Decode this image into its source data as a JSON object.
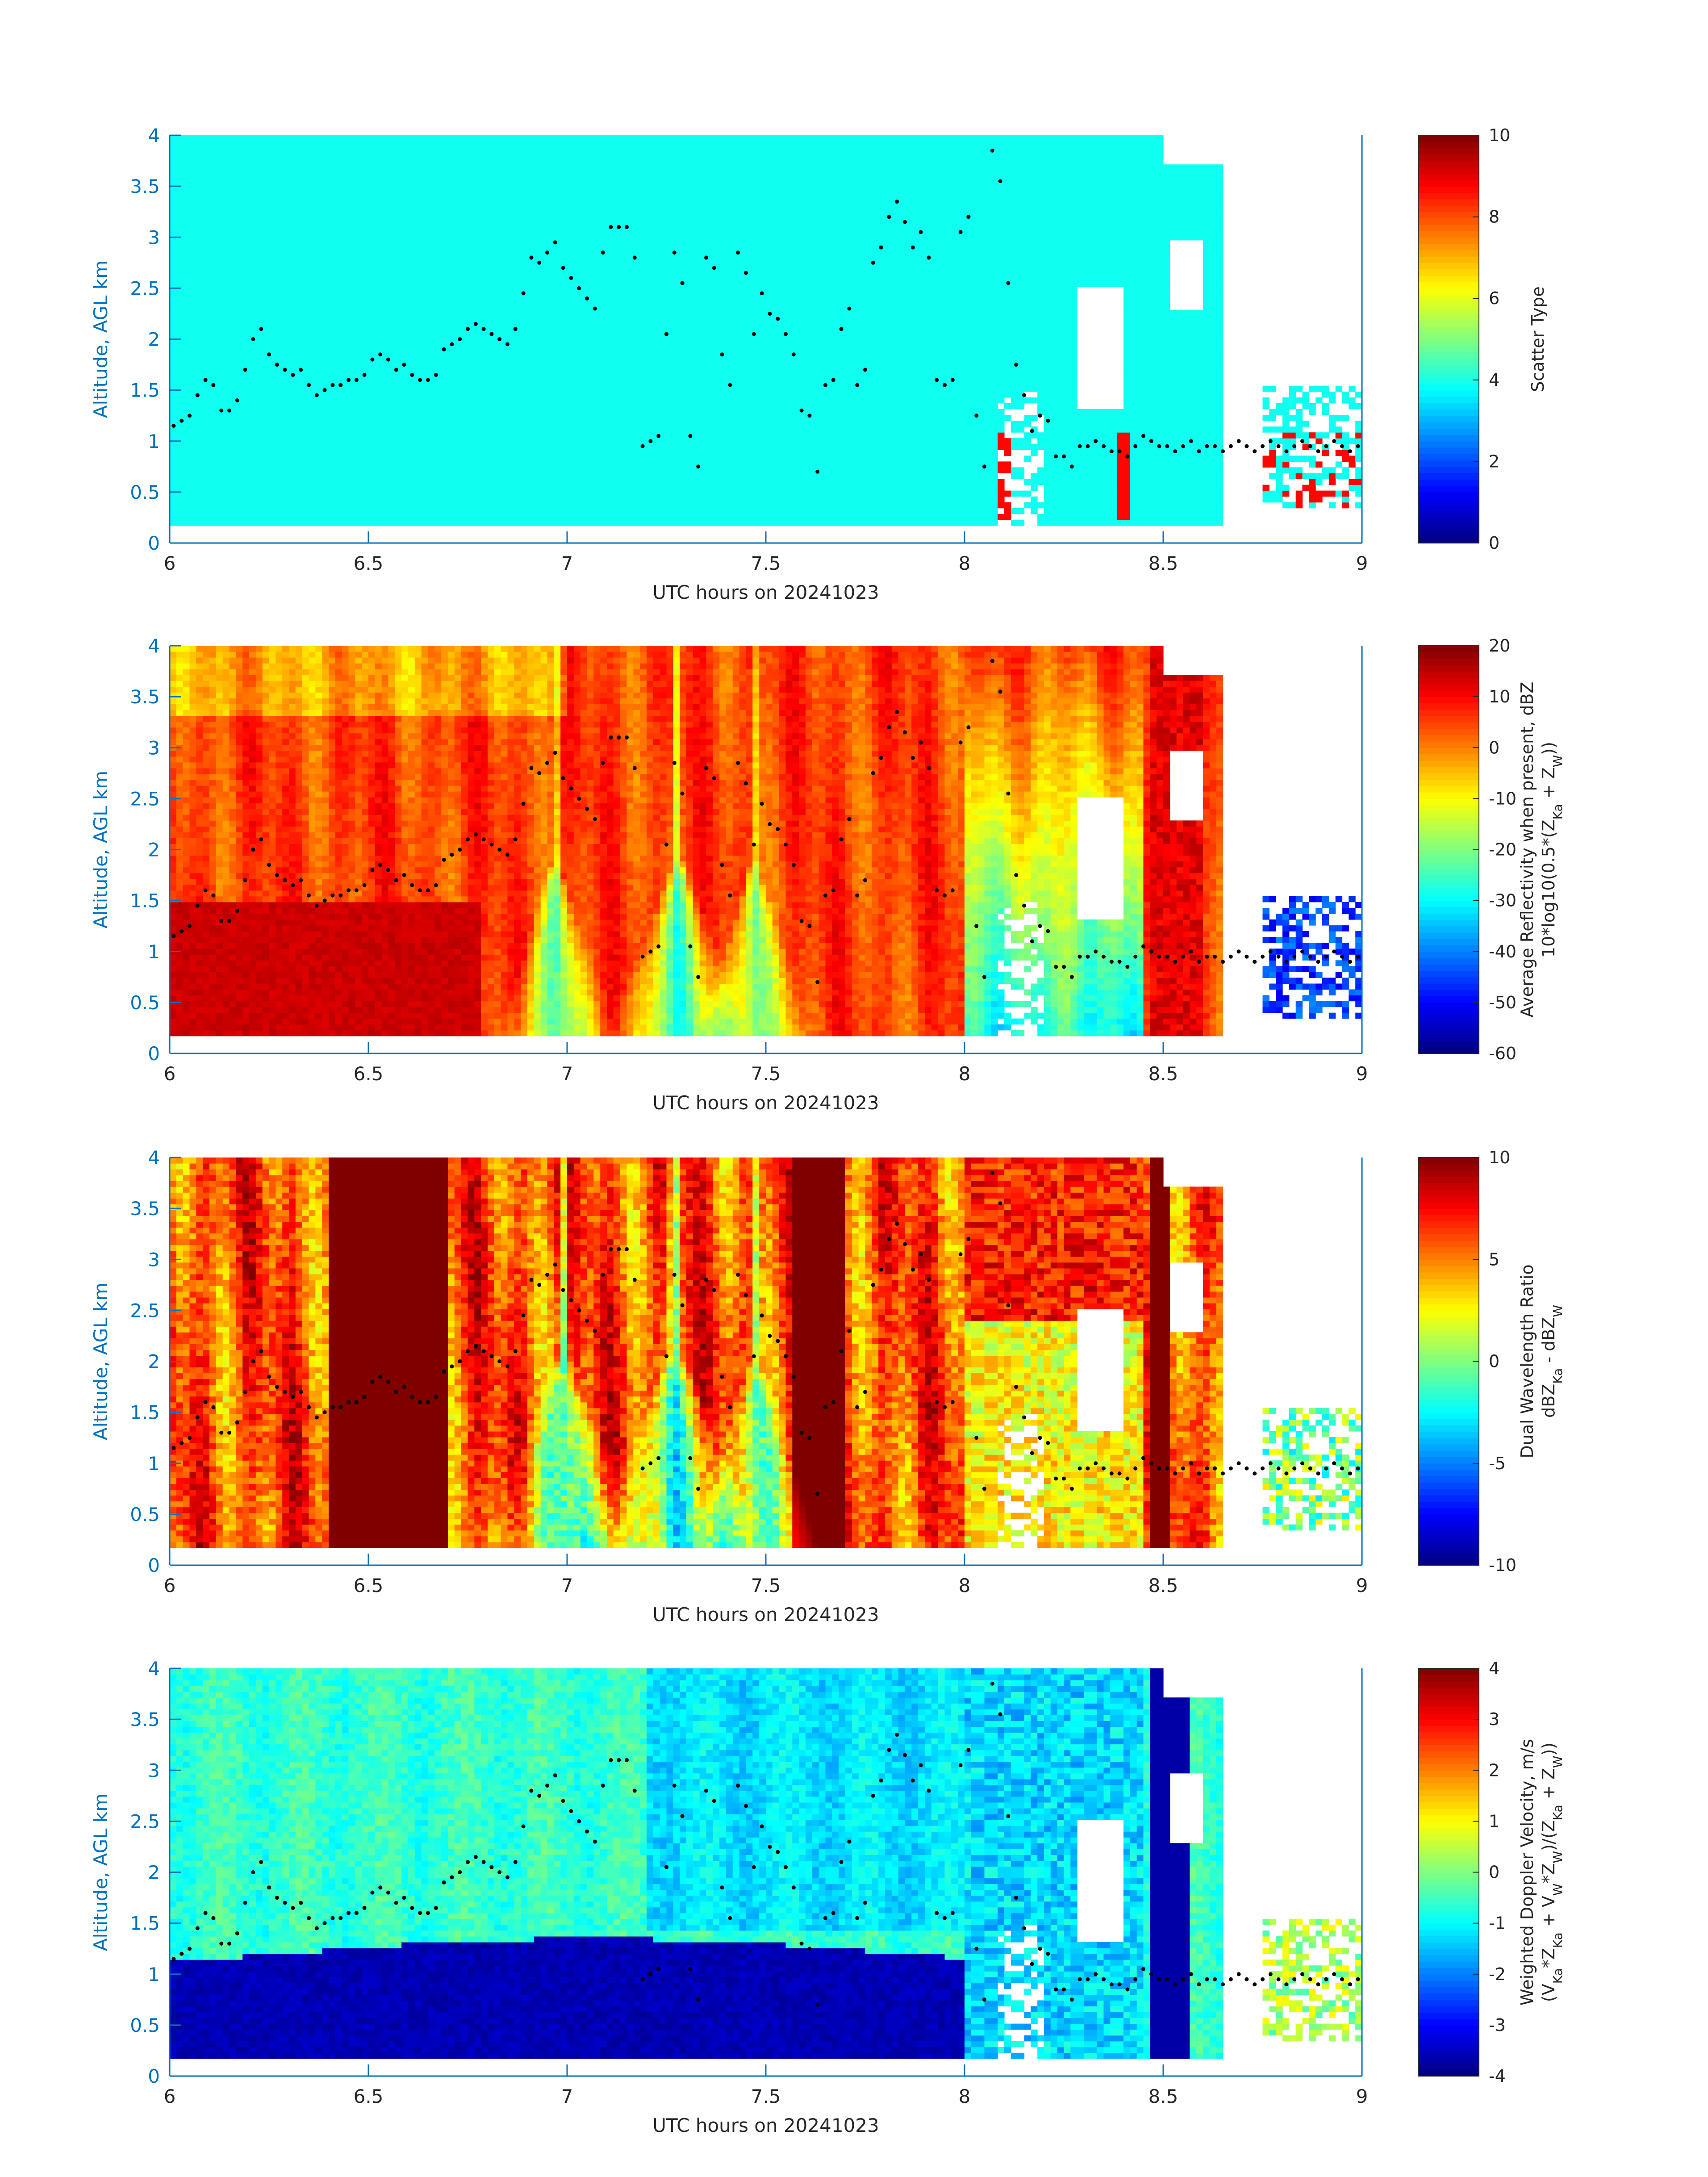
{
  "figure": {
    "background": "#ffffff",
    "axis_color": "#0072BD",
    "text_color": "#262626"
  },
  "chart_data": [
    {
      "type": "heatmap",
      "xlabel": "UTC hours on 20241023",
      "ylabel": "Altitude, AGL km",
      "xlim": [
        6,
        9
      ],
      "ylim": [
        0,
        4
      ],
      "xticks": [
        6,
        6.5,
        7,
        7.5,
        8,
        8.5,
        9
      ],
      "xtick_labels": [
        "6",
        "6.5",
        "7",
        "7.5",
        "8",
        "8.5",
        "9"
      ],
      "yticks": [
        0,
        0.5,
        1,
        1.5,
        2,
        2.5,
        3,
        3.5,
        4
      ],
      "ytick_labels": [
        "0",
        "0.5",
        "1",
        "1.5",
        "2",
        "2.5",
        "3",
        "3.5",
        "4"
      ],
      "colorbar": {
        "label_lines": [
          "Scatter Type"
        ],
        "clim": [
          0,
          10
        ],
        "ticks": [
          0,
          2,
          4,
          6,
          8,
          10
        ],
        "tick_labels": [
          "0",
          "2",
          "4",
          "6",
          "8",
          "10"
        ],
        "colormap": "jet"
      },
      "field": "scatter_type",
      "dominant_value": 3.9
    },
    {
      "type": "heatmap",
      "xlabel": "UTC hours on 20241023",
      "ylabel": "Altitude, AGL km",
      "xlim": [
        6,
        9
      ],
      "ylim": [
        0,
        4
      ],
      "xticks": [
        6,
        6.5,
        7,
        7.5,
        8,
        8.5,
        9
      ],
      "xtick_labels": [
        "6",
        "6.5",
        "7",
        "7.5",
        "8",
        "8.5",
        "9"
      ],
      "yticks": [
        0,
        0.5,
        1,
        1.5,
        2,
        2.5,
        3,
        3.5,
        4
      ],
      "ytick_labels": [
        "0",
        "0.5",
        "1",
        "1.5",
        "2",
        "2.5",
        "3",
        "3.5",
        "4"
      ],
      "colorbar": {
        "label_lines": [
          "Average Reflectivity when present, dBZ",
          "10*log10(0.5*(Z_Ka + Z_W))"
        ],
        "clim": [
          -60,
          20
        ],
        "ticks": [
          -60,
          -50,
          -40,
          -30,
          -20,
          -10,
          0,
          10,
          20
        ],
        "tick_labels": [
          "-60",
          "-50",
          "-40",
          "-30",
          "-20",
          "-10",
          "0",
          "10",
          "20"
        ],
        "colormap": "jet"
      },
      "field": "reflectivity"
    },
    {
      "type": "heatmap",
      "xlabel": "UTC hours on 20241023",
      "ylabel": "Altitude, AGL km",
      "xlim": [
        6,
        9
      ],
      "ylim": [
        0,
        4
      ],
      "xticks": [
        6,
        6.5,
        7,
        7.5,
        8,
        8.5,
        9
      ],
      "xtick_labels": [
        "6",
        "6.5",
        "7",
        "7.5",
        "8",
        "8.5",
        "9"
      ],
      "yticks": [
        0,
        0.5,
        1,
        1.5,
        2,
        2.5,
        3,
        3.5,
        4
      ],
      "ytick_labels": [
        "0",
        "0.5",
        "1",
        "1.5",
        "2",
        "2.5",
        "3",
        "3.5",
        "4"
      ],
      "colorbar": {
        "label_lines": [
          "Dual Wavelength Ratio",
          "dBZ_Ka - dBZ_W"
        ],
        "clim": [
          -10,
          10
        ],
        "ticks": [
          -10,
          -5,
          0,
          5,
          10
        ],
        "tick_labels": [
          "-10",
          "-5",
          "0",
          "5",
          "10"
        ],
        "colormap": "jet"
      },
      "field": "dual_wavelength_ratio"
    },
    {
      "type": "heatmap",
      "xlabel": "UTC hours on 20241023",
      "ylabel": "Altitude, AGL km",
      "xlim": [
        6,
        9
      ],
      "ylim": [
        0,
        4
      ],
      "xticks": [
        6,
        6.5,
        7,
        7.5,
        8,
        8.5,
        9
      ],
      "xtick_labels": [
        "6",
        "6.5",
        "7",
        "7.5",
        "8",
        "8.5",
        "9"
      ],
      "yticks": [
        0,
        0.5,
        1,
        1.5,
        2,
        2.5,
        3,
        3.5,
        4
      ],
      "ytick_labels": [
        "0",
        "0.5",
        "1",
        "1.5",
        "2",
        "2.5",
        "3",
        "3.5",
        "4"
      ],
      "colorbar": {
        "label_lines": [
          "Weighted Doppler Velocity, m/s",
          "(V_Ka*Z_Ka + V_W*Z_W)/(Z_Ka + Z_W))"
        ],
        "clim": [
          -4,
          4
        ],
        "ticks": [
          -4,
          -3,
          -2,
          -1,
          0,
          1,
          2,
          3,
          4
        ],
        "tick_labels": [
          "-4",
          "-3",
          "-2",
          "-1",
          "0",
          "1",
          "2",
          "3",
          "4"
        ],
        "colormap": "jet"
      },
      "field": "doppler_velocity"
    }
  ],
  "overlay_points": {
    "description_in_plot": "black dots",
    "x": [
      6.0,
      6.02,
      6.04,
      6.06,
      6.08,
      6.1,
      6.12,
      6.14,
      6.16,
      6.18,
      6.2,
      6.22,
      6.24,
      6.26,
      6.28,
      6.3,
      6.32,
      6.34,
      6.36,
      6.38,
      6.4,
      6.42,
      6.44,
      6.46,
      6.48,
      6.5,
      6.52,
      6.54,
      6.56,
      6.58,
      6.6,
      6.62,
      6.64,
      6.66,
      6.68,
      6.7,
      6.72,
      6.74,
      6.76,
      6.78,
      6.8,
      6.82,
      6.84,
      6.86,
      6.88,
      6.9,
      6.92,
      6.94,
      6.96,
      6.98,
      7.0,
      7.02,
      7.04,
      7.06,
      7.08,
      7.1,
      7.12,
      7.14,
      7.16,
      7.18,
      7.2,
      7.22,
      7.24,
      7.26,
      7.28,
      7.3,
      7.32,
      7.34,
      7.36,
      7.38,
      7.4,
      7.42,
      7.44,
      7.46,
      7.48,
      7.5,
      7.52,
      7.54,
      7.56,
      7.58,
      7.6,
      7.62,
      7.64,
      7.66,
      7.68,
      7.7,
      7.72,
      7.74,
      7.76,
      7.78,
      7.8,
      7.82,
      7.84,
      7.86,
      7.88,
      7.9,
      7.92,
      7.94,
      7.96,
      7.98,
      8.0,
      8.02,
      8.04,
      8.06,
      8.08,
      8.1,
      8.12,
      8.14,
      8.16,
      8.18,
      8.2,
      8.22,
      8.24,
      8.26,
      8.28,
      8.3,
      8.32,
      8.34,
      8.36,
      8.38,
      8.4,
      8.42,
      8.44,
      8.46,
      8.48,
      8.5,
      8.52,
      8.54,
      8.56,
      8.58,
      8.6,
      8.62,
      8.64,
      8.66,
      8.68,
      8.7,
      8.72,
      8.74,
      8.76,
      8.78,
      8.8,
      8.82,
      8.84,
      8.86,
      8.88,
      8.9,
      8.92,
      8.94,
      8.96,
      8.98
    ],
    "y": [
      1.15,
      1.2,
      1.25,
      1.45,
      1.6,
      1.55,
      1.3,
      1.3,
      1.4,
      1.7,
      2.0,
      2.1,
      1.85,
      1.75,
      1.7,
      1.65,
      1.7,
      1.55,
      1.45,
      1.5,
      1.55,
      1.55,
      1.6,
      1.6,
      1.65,
      1.8,
      1.85,
      1.8,
      1.7,
      1.75,
      1.65,
      1.6,
      1.6,
      1.65,
      1.9,
      1.95,
      2.0,
      2.1,
      2.15,
      2.1,
      2.05,
      2.0,
      1.95,
      2.1,
      2.45,
      2.8,
      2.75,
      2.85,
      2.95,
      2.7,
      2.6,
      2.5,
      2.4,
      2.3,
      2.85,
      3.1,
      3.1,
      3.1,
      2.8,
      0.95,
      1.0,
      1.05,
      2.05,
      2.85,
      2.55,
      1.05,
      0.75,
      2.8,
      2.7,
      1.85,
      1.55,
      2.85,
      2.65,
      2.05,
      2.45,
      2.25,
      2.2,
      2.05,
      1.85,
      1.3,
      1.25,
      0.7,
      1.55,
      1.6,
      2.1,
      2.3,
      1.55,
      1.7,
      2.75,
      2.9,
      3.2,
      3.35,
      3.15,
      2.9,
      3.05,
      2.8,
      1.6,
      1.55,
      1.6,
      3.05,
      3.2,
      1.25,
      0.75,
      3.85,
      3.55,
      2.55,
      1.75,
      1.45,
      1.1,
      1.25,
      1.2,
      0.85,
      0.85,
      0.75,
      0.95,
      0.95,
      1.0,
      0.95,
      0.9,
      0.9,
      0.85,
      0.95,
      1.05,
      1.0,
      0.95,
      0.95,
      0.9,
      0.95,
      1.0,
      0.9,
      0.95,
      0.95,
      0.9,
      0.95,
      1.0,
      0.95,
      0.9,
      0.95,
      1.0,
      0.95,
      0.9,
      0.95,
      1.0,
      0.95,
      0.9,
      0.95,
      1.0,
      0.95,
      0.9,
      0.95
    ]
  }
}
